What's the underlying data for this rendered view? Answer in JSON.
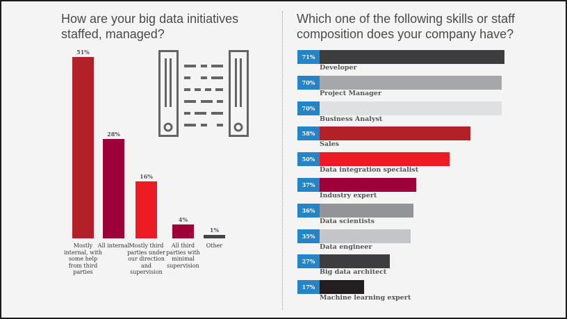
{
  "chart_data": [
    {
      "type": "bar",
      "title": "How are your big data initiatives staffed, managed?",
      "categories": [
        "Mostly internal, with some help from third parties",
        "All internal",
        "Mostly third parties under our direction and supervision",
        "All third parties with minimal supervision",
        "Other"
      ],
      "values": [
        51,
        28,
        16,
        4,
        1
      ],
      "value_labels": [
        "51%",
        "28%",
        "16%",
        "4%",
        "1%"
      ],
      "colors": [
        "#b22028",
        "#9d0039",
        "#ec1c24",
        "#9d0039",
        "#444446"
      ],
      "ylim": [
        0,
        51
      ]
    },
    {
      "type": "bar",
      "orientation": "horizontal",
      "title": "Which one of the following skills or staff composition does your company have?",
      "categories": [
        "Developer",
        "Project Manager",
        "Business Analyst",
        "Sales",
        "Data integration specialist",
        "Industry expert",
        "Data scientists",
        "Data engineer",
        "Big data architect",
        "Machine learning expert"
      ],
      "values": [
        71,
        70,
        70,
        58,
        50,
        37,
        36,
        35,
        27,
        17
      ],
      "value_labels": [
        "71%",
        "70%",
        "70%",
        "58%",
        "50%",
        "37%",
        "36%",
        "35%",
        "27%",
        "17%"
      ],
      "colors": [
        "#3d3d3f",
        "#a6a7ab",
        "#dfe0e2",
        "#b22028",
        "#ec1c24",
        "#9d0039",
        "#939497",
        "#c4c5c8",
        "#3d3d3f",
        "#231f20"
      ],
      "label_color": "#2385c8",
      "xlim": [
        0,
        71
      ]
    }
  ]
}
